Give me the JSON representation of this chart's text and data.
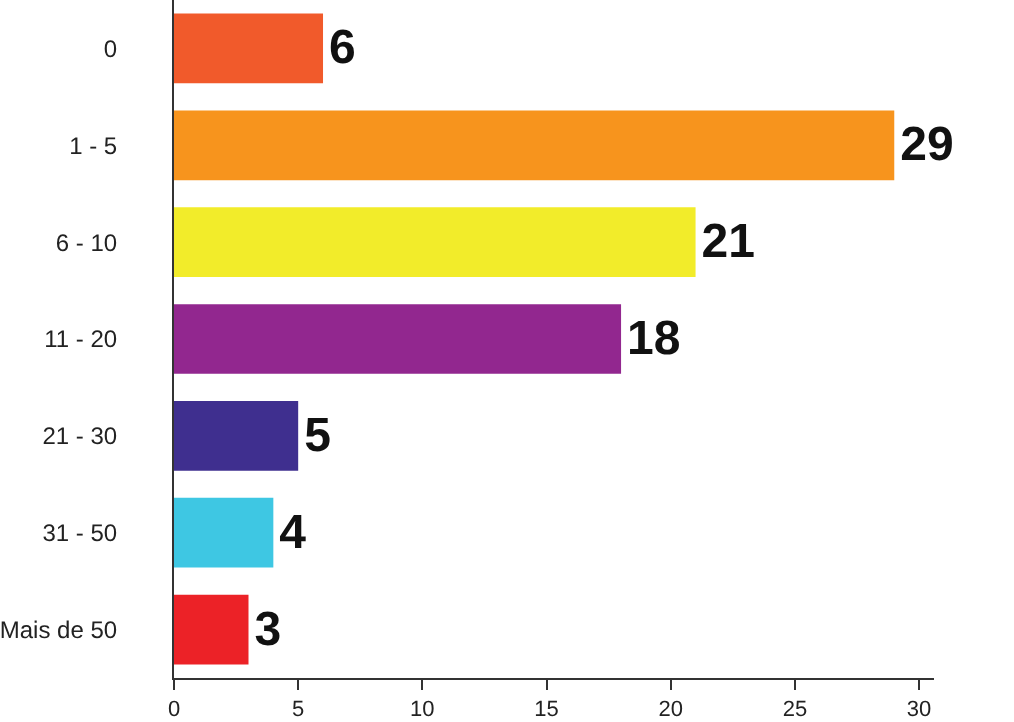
{
  "chart_data": {
    "type": "bar",
    "orientation": "horizontal",
    "categories": [
      "0",
      "1 - 5",
      "6 - 10",
      "11 - 20",
      "21 - 30",
      "31 - 50",
      "Mais de 50"
    ],
    "values": [
      6,
      29,
      21,
      18,
      5,
      4,
      3
    ],
    "colors": [
      "#f15a2b",
      "#f7941d",
      "#f2ec2a",
      "#92278f",
      "#3f2f8f",
      "#3ec7e3",
      "#ec2227"
    ],
    "xlim": [
      0,
      30.6
    ],
    "xticks": [
      0,
      5,
      10,
      15,
      20,
      25,
      30
    ],
    "data_labels": true
  }
}
